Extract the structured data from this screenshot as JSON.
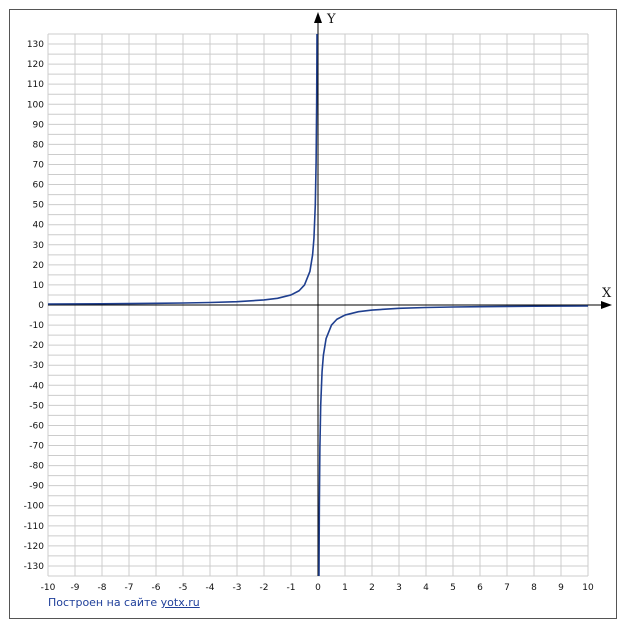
{
  "chart_data": {
    "type": "line",
    "title": "",
    "xlabel": "X",
    "ylabel": "Y",
    "xlim": [
      -10,
      10
    ],
    "ylim": [
      -135,
      135
    ],
    "x_ticks": [
      -10,
      -9,
      -8,
      -7,
      -6,
      -5,
      -4,
      -3,
      -2,
      -1,
      0,
      1,
      2,
      3,
      4,
      5,
      6,
      7,
      8,
      9,
      10
    ],
    "y_ticks": [
      130,
      120,
      110,
      100,
      90,
      80,
      70,
      60,
      50,
      40,
      30,
      20,
      10,
      0,
      -10,
      -20,
      -30,
      -40,
      -50,
      -60,
      -70,
      -80,
      -90,
      -100,
      -110,
      -120,
      -130
    ],
    "grid": true,
    "colors": {
      "curve": "#1f3f8f",
      "grid": "#cccccc",
      "axis": "#000000"
    },
    "series": [
      {
        "name": "",
        "points": [
          [
            -10,
            0.5
          ],
          [
            -9,
            0.56
          ],
          [
            -8,
            0.63
          ],
          [
            -7,
            0.71
          ],
          [
            -6,
            0.83
          ],
          [
            -5,
            1
          ],
          [
            -4,
            1.25
          ],
          [
            -3,
            1.67
          ],
          [
            -2,
            2.5
          ],
          [
            -1.5,
            3.33
          ],
          [
            -1,
            5
          ],
          [
            -0.7,
            7.1
          ],
          [
            -0.5,
            10
          ],
          [
            -0.3,
            16.7
          ],
          [
            -0.2,
            25
          ],
          [
            -0.15,
            33.3
          ],
          [
            -0.1,
            50
          ],
          [
            -0.07,
            71.4
          ],
          [
            -0.05,
            100
          ],
          [
            -0.04,
            125
          ],
          [
            -0.037,
            135
          ]
        ]
      },
      {
        "name": "",
        "points": [
          [
            0.037,
            -135
          ],
          [
            0.04,
            -125
          ],
          [
            0.05,
            -100
          ],
          [
            0.07,
            -71.4
          ],
          [
            0.1,
            -50
          ],
          [
            0.15,
            -33.3
          ],
          [
            0.2,
            -25
          ],
          [
            0.3,
            -16.7
          ],
          [
            0.5,
            -10
          ],
          [
            0.7,
            -7.1
          ],
          [
            1,
            -5
          ],
          [
            1.5,
            -3.33
          ],
          [
            2,
            -2.5
          ],
          [
            3,
            -1.67
          ],
          [
            4,
            -1.25
          ],
          [
            5,
            -1
          ],
          [
            6,
            -0.83
          ],
          [
            7,
            -0.71
          ],
          [
            8,
            -0.63
          ],
          [
            9,
            -0.56
          ],
          [
            10,
            -0.5
          ]
        ]
      }
    ]
  },
  "footer": {
    "credit_text": "Построен на сайте ",
    "credit_link": "yotx.ru"
  }
}
